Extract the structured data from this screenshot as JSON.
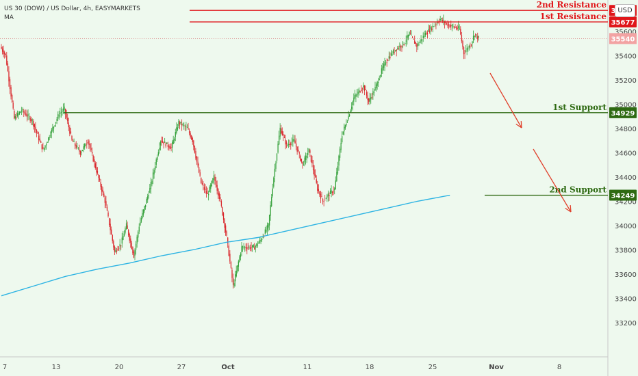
{
  "header": {
    "symbol": "US 30 (DOW) / US Dollar, 4h, EASYMARKETS",
    "indicator": "MA",
    "currency": "USD"
  },
  "colors": {
    "background": "#eef9ee",
    "resistance": "#e0161a",
    "support": "#2e6a12",
    "ma": "#2bb3e3",
    "up": "#34a03a",
    "down": "#d9262b",
    "arrow": "#e0402b"
  },
  "chart_data": {
    "type": "candlestick",
    "title": "",
    "ylabel": "",
    "xlabel": "",
    "ylim": [
      33100,
      36350
    ],
    "y_ticks": [
      33200,
      33400,
      33600,
      33800,
      34000,
      34200,
      34400,
      34600,
      34800,
      35000,
      35200,
      35400,
      35600
    ],
    "x_ticks": [
      "7",
      "13",
      "20",
      "27",
      "Oct",
      "11",
      "18",
      "25",
      "Nov",
      "8"
    ],
    "current_price": 35540,
    "levels": [
      {
        "label": "2nd Resistance",
        "value": 35772,
        "badge": "35772",
        "kind": "resistance"
      },
      {
        "label": "1st Resistance",
        "value": 35677,
        "badge": "35677",
        "kind": "resistance"
      },
      {
        "label": "1st Support",
        "value": 34929,
        "badge": "34929",
        "kind": "support"
      },
      {
        "label": "2nd Support",
        "value": 34249,
        "badge": "34249",
        "kind": "support"
      }
    ],
    "price_path": [
      [
        0,
        35470
      ],
      [
        5,
        35400
      ],
      [
        13,
        34880
      ],
      [
        20,
        34950
      ],
      [
        30,
        34860
      ],
      [
        40,
        34620
      ],
      [
        48,
        34780
      ],
      [
        55,
        34920
      ],
      [
        60,
        34960
      ],
      [
        67,
        34700
      ],
      [
        75,
        34600
      ],
      [
        82,
        34700
      ],
      [
        90,
        34450
      ],
      [
        98,
        34200
      ],
      [
        107,
        33780
      ],
      [
        113,
        33850
      ],
      [
        118,
        34000
      ],
      [
        125,
        33750
      ],
      [
        130,
        34000
      ],
      [
        140,
        34300
      ],
      [
        150,
        34700
      ],
      [
        160,
        34640
      ],
      [
        167,
        34850
      ],
      [
        175,
        34800
      ],
      [
        180,
        34700
      ],
      [
        188,
        34350
      ],
      [
        194,
        34250
      ],
      [
        200,
        34400
      ],
      [
        206,
        34200
      ],
      [
        212,
        33900
      ],
      [
        218,
        33500
      ],
      [
        226,
        33820
      ],
      [
        238,
        33820
      ],
      [
        244,
        33880
      ],
      [
        251,
        34000
      ],
      [
        256,
        34400
      ],
      [
        262,
        34800
      ],
      [
        268,
        34660
      ],
      [
        275,
        34700
      ],
      [
        283,
        34500
      ],
      [
        289,
        34620
      ],
      [
        297,
        34300
      ],
      [
        302,
        34200
      ],
      [
        307,
        34250
      ],
      [
        313,
        34300
      ],
      [
        320,
        34750
      ],
      [
        326,
        34900
      ],
      [
        331,
        35050
      ],
      [
        340,
        35150
      ],
      [
        345,
        35020
      ],
      [
        352,
        35150
      ],
      [
        358,
        35300
      ],
      [
        364,
        35390
      ],
      [
        370,
        35450
      ],
      [
        378,
        35500
      ],
      [
        383,
        35580
      ],
      [
        390,
        35480
      ],
      [
        398,
        35580
      ],
      [
        405,
        35640
      ],
      [
        412,
        35700
      ],
      [
        418,
        35660
      ],
      [
        423,
        35640
      ],
      [
        430,
        35620
      ],
      [
        434,
        35420
      ],
      [
        441,
        35500
      ],
      [
        444,
        35580
      ],
      [
        448,
        35540
      ]
    ],
    "moving_average": [
      [
        0,
        33420
      ],
      [
        30,
        33500
      ],
      [
        60,
        33580
      ],
      [
        90,
        33640
      ],
      [
        120,
        33690
      ],
      [
        150,
        33750
      ],
      [
        180,
        33800
      ],
      [
        210,
        33860
      ],
      [
        240,
        33900
      ],
      [
        270,
        33960
      ],
      [
        300,
        34020
      ],
      [
        330,
        34080
      ],
      [
        360,
        34140
      ],
      [
        390,
        34200
      ],
      [
        420,
        34249
      ]
    ]
  }
}
